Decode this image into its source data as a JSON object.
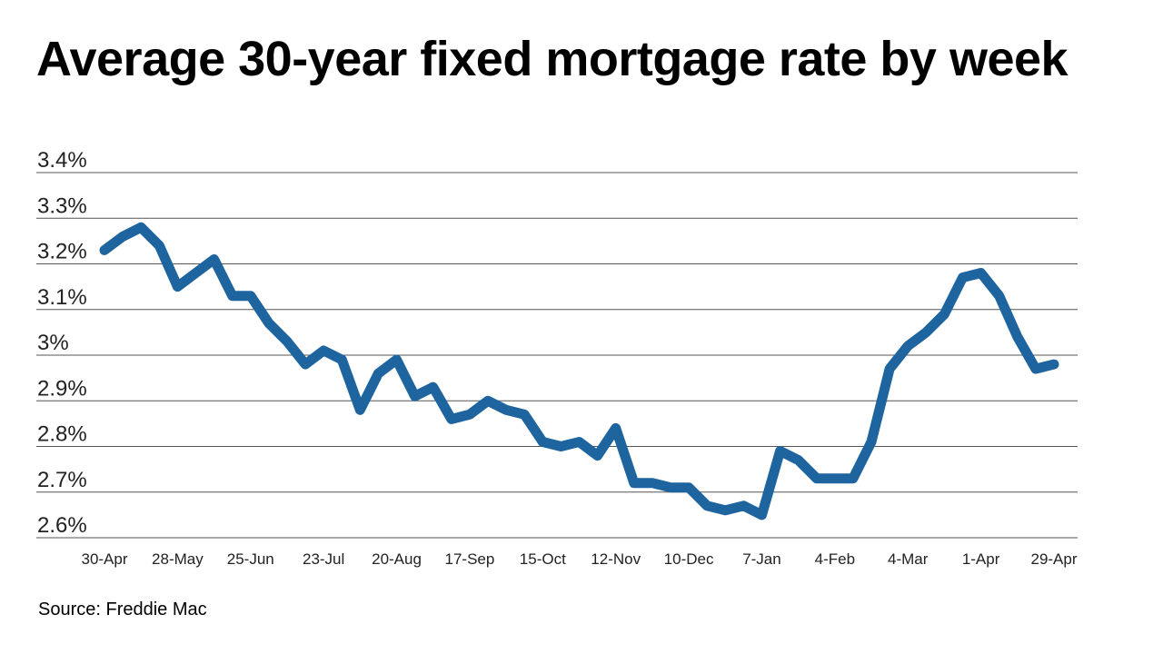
{
  "chart_data": {
    "type": "line",
    "title": "Average 30-year fixed mortgage rate by week",
    "xlabel": "",
    "ylabel": "",
    "x_tick_labels": [
      "30-Apr",
      "28-May",
      "25-Jun",
      "23-Jul",
      "20-Aug",
      "17-Sep",
      "15-Oct",
      "12-Nov",
      "10-Dec",
      "7-Jan",
      "4-Feb",
      "4-Mar",
      "1-Apr",
      "29-Apr"
    ],
    "y_ticks": [
      2.6,
      2.7,
      2.8,
      2.9,
      3.0,
      3.1,
      3.2,
      3.3,
      3.4
    ],
    "y_tick_labels": [
      "2.6%",
      "2.7%",
      "2.8%",
      "2.9%",
      "3%",
      "3.1%",
      "3.2%",
      "3.3%",
      "3.4%"
    ],
    "ylim": [
      2.6,
      3.4
    ],
    "grid": true,
    "legend": "none",
    "series_color": "#1e65a0",
    "gridline_color": "#555555",
    "series": [
      {
        "values": [
          3.23,
          3.26,
          3.28,
          3.24,
          3.15,
          3.18,
          3.21,
          3.13,
          3.13,
          3.07,
          3.03,
          2.98,
          3.01,
          2.99,
          2.88,
          2.96,
          2.99,
          2.91,
          2.93,
          2.86,
          2.87,
          2.9,
          2.88,
          2.87,
          2.81,
          2.8,
          2.81,
          2.78,
          2.84,
          2.72,
          2.72,
          2.71,
          2.71,
          2.67,
          2.66,
          2.67,
          2.65,
          2.79,
          2.77,
          2.73,
          2.73,
          2.73,
          2.81,
          2.97,
          3.02,
          3.05,
          3.09,
          3.17,
          3.18,
          3.13,
          3.04,
          2.97,
          2.98
        ]
      }
    ]
  },
  "source_text": "Source: Freddie Mac"
}
